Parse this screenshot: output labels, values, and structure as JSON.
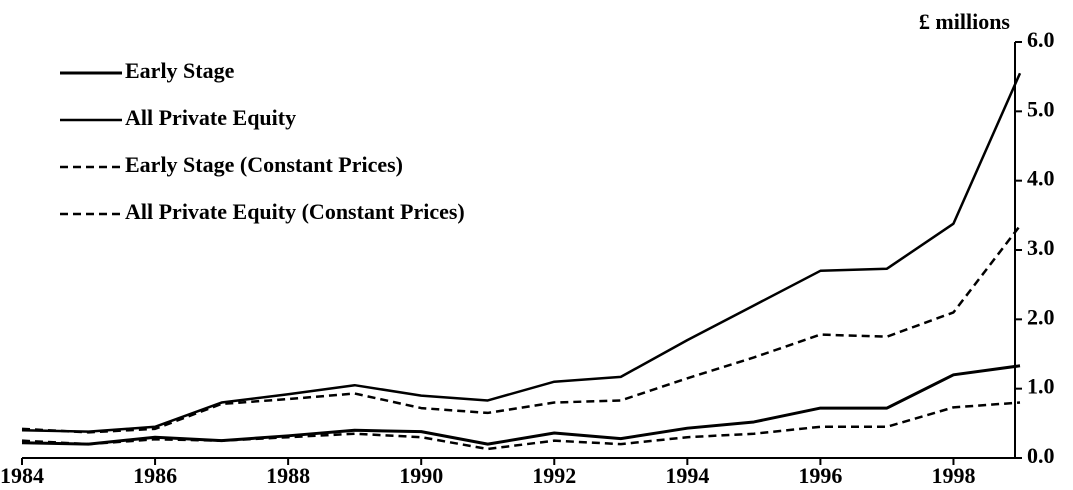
{
  "chart_data": {
    "type": "line",
    "y_axis_label": "£ millions",
    "x": [
      1984,
      1985,
      1986,
      1987,
      1988,
      1989,
      1990,
      1991,
      1992,
      1993,
      1994,
      1995,
      1996,
      1997,
      1998,
      1999
    ],
    "series": [
      {
        "name": "Early Stage",
        "color": "#000000",
        "width": 3,
        "dash": false,
        "values": [
          0.22,
          0.2,
          0.3,
          0.25,
          0.32,
          0.4,
          0.38,
          0.2,
          0.36,
          0.28,
          0.43,
          0.52,
          0.72,
          0.72,
          1.2,
          1.33
        ]
      },
      {
        "name": "All Private Equity",
        "color": "#000000",
        "width": 2.5,
        "dash": false,
        "values": [
          0.4,
          0.38,
          0.45,
          0.8,
          0.92,
          1.05,
          0.9,
          0.83,
          1.1,
          1.17,
          1.7,
          2.2,
          2.7,
          2.73,
          3.38,
          5.55
        ]
      },
      {
        "name": "Early Stage (Constant Prices)",
        "color": "#000000",
        "width": 2.5,
        "dash": true,
        "values": [
          0.25,
          0.2,
          0.27,
          0.25,
          0.3,
          0.35,
          0.3,
          0.13,
          0.25,
          0.2,
          0.3,
          0.35,
          0.45,
          0.45,
          0.73,
          0.8
        ]
      },
      {
        "name": "All Private Equity (Constant Prices)",
        "color": "#000000",
        "width": 2.5,
        "dash": true,
        "values": [
          0.42,
          0.37,
          0.42,
          0.78,
          0.85,
          0.93,
          0.72,
          0.65,
          0.8,
          0.83,
          1.15,
          1.45,
          1.78,
          1.75,
          2.1,
          3.35
        ]
      }
    ],
    "xlim": [
      1984,
      1999
    ],
    "xticks": [
      1984,
      1986,
      1988,
      1990,
      1992,
      1994,
      1996,
      1998
    ],
    "ylim": [
      0,
      6
    ],
    "yticks": [
      {
        "value": 0,
        "label": "0.0"
      },
      {
        "value": 1,
        "label": "1.0"
      },
      {
        "value": 2,
        "label": "2.0"
      },
      {
        "value": 3,
        "label": "3.0"
      },
      {
        "value": 4,
        "label": "4.0"
      },
      {
        "value": 5,
        "label": "5.0"
      },
      {
        "value": 6,
        "label": "6.0"
      }
    ],
    "y_axis_side": "right",
    "legend": "top-left",
    "grid": false
  }
}
